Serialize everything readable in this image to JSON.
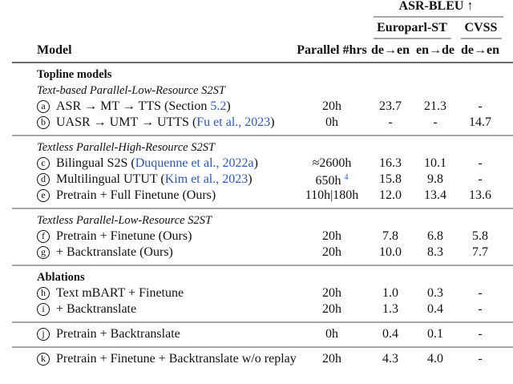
{
  "header": {
    "metric": "ASR-BLEU ↑",
    "datasets": [
      "Europarl-ST",
      "CVSS"
    ],
    "model": "Model",
    "hours": "Parallel #hrs",
    "directions": [
      "de→en",
      "en→de",
      "de→en"
    ]
  },
  "groups": [
    {
      "heading": "Topline models",
      "subheading": "Text-based Parallel-Low-Resource S2ST",
      "rows": [
        {
          "marker": "a",
          "model": [
            "ASR → MT → TTS (Section ",
            {
              "link": "5.2"
            },
            ")"
          ],
          "hours": "20h",
          "scores": [
            "23.7",
            "21.3",
            "-"
          ]
        },
        {
          "marker": "b",
          "model": [
            "UASR → UMT → UTTS (",
            {
              "link": "Fu et al., 2023"
            },
            ")"
          ],
          "hours": "0h",
          "scores": [
            "-",
            "-",
            "14.7"
          ]
        }
      ]
    },
    {
      "subheading": "Textless Parallel-High-Resource S2ST",
      "rows": [
        {
          "marker": "c",
          "model": [
            "Bilingual S2S (",
            {
              "link": "Duquenne et al., 2022a"
            },
            ")"
          ],
          "hours": "≈2600h",
          "scores": [
            "16.3",
            "10.1",
            "-"
          ]
        },
        {
          "marker": "d",
          "model": [
            "Multilingual UTUT (",
            {
              "link": "Kim et al., 2023"
            },
            ")"
          ],
          "hours": "650h",
          "note": "4",
          "scores": [
            "15.8",
            "9.8",
            "-"
          ]
        },
        {
          "marker": "e",
          "model": [
            "Pretrain + Full Finetune (Ours)"
          ],
          "hours": "110h|180h",
          "scores": [
            "12.0",
            "13.4",
            "13.6"
          ]
        }
      ]
    },
    {
      "subheading": "Textless Parallel-Low-Resource S2ST",
      "rows": [
        {
          "marker": "f",
          "model": [
            "Pretrain + Finetune (Ours)"
          ],
          "hours": "20h",
          "scores": [
            "7.8",
            "6.8",
            "5.8"
          ]
        },
        {
          "marker": "g",
          "model": [
            "+ Backtranslate (Ours)"
          ],
          "hours": "20h",
          "scores": [
            "10.0",
            "8.3",
            "7.7"
          ]
        }
      ]
    },
    {
      "heading": "Ablations",
      "rows": [
        {
          "marker": "h",
          "model": [
            "Text mBART + Finetune"
          ],
          "hours": "20h",
          "scores": [
            "1.0",
            "0.3",
            "-"
          ]
        },
        {
          "marker": "i",
          "model": [
            "+ Backtranslate"
          ],
          "hours": "20h",
          "scores": [
            "1.3",
            "0.4",
            "-"
          ]
        }
      ]
    },
    {
      "rows": [
        {
          "marker": "j",
          "model": [
            "Pretrain + Backtranslate"
          ],
          "hours": "0h",
          "scores": [
            "0.4",
            "0.1",
            "-"
          ]
        }
      ]
    },
    {
      "rows": [
        {
          "marker": "k",
          "model": [
            "Pretrain + Finetune + Backtranslate w/o replay"
          ],
          "hours": "20h",
          "scores": [
            "4.3",
            "4.0",
            "-"
          ]
        }
      ]
    }
  ]
}
